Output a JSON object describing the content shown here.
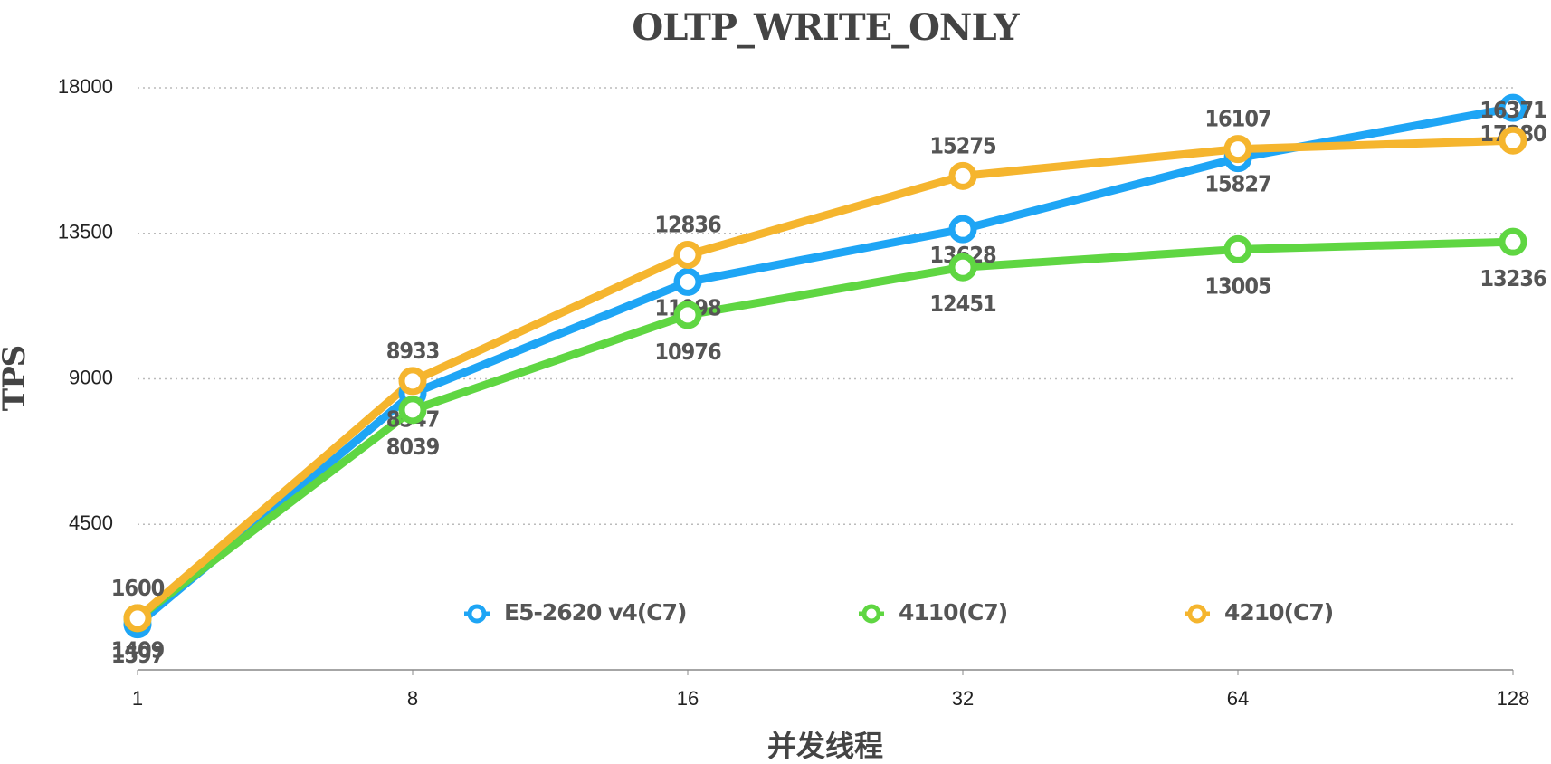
{
  "chart_data": {
    "type": "line",
    "title": "OLTP_WRITE_ONLY",
    "x_label": "并发线程",
    "y_label": "TPS",
    "categories": [
      "1",
      "8",
      "16",
      "32",
      "64",
      "128"
    ],
    "series": [
      {
        "name": "E5-2620 v4(C7)",
        "color": "#1ea5f5",
        "values": [
          1409,
          8547,
          11998,
          13628,
          15827,
          17380
        ]
      },
      {
        "name": "4110(C7)",
        "color": "#5fd642",
        "values": [
          1597,
          8039,
          10976,
          12451,
          13005,
          13236
        ]
      },
      {
        "name": "4210(C7)",
        "color": "#f5b52e",
        "values": [
          1600,
          8933,
          12836,
          15275,
          16107,
          16371
        ]
      }
    ],
    "ylim": [
      0,
      18000
    ],
    "yticks": [
      4500,
      9000,
      13500,
      18000
    ],
    "grid": true
  }
}
